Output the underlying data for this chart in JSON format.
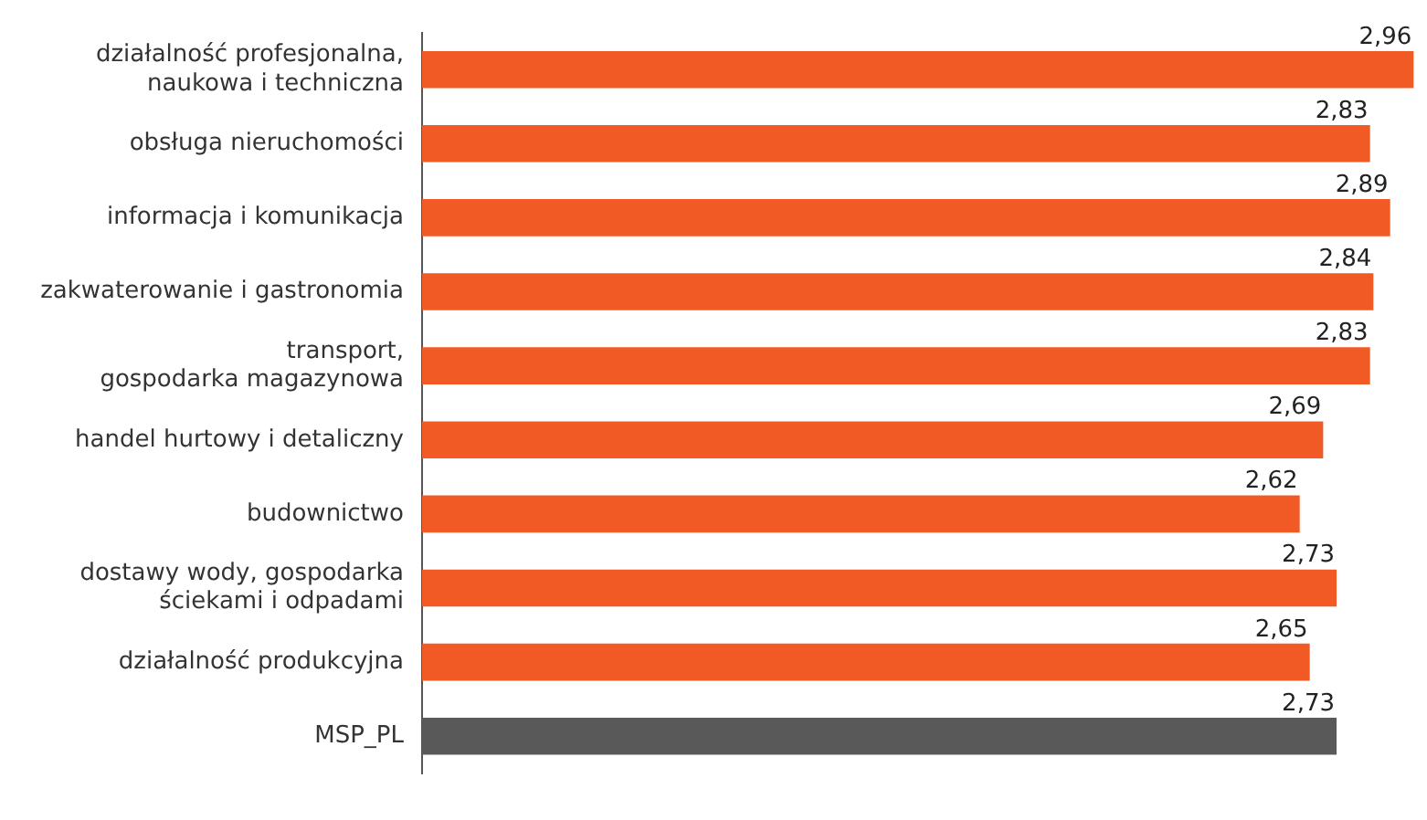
{
  "chart_data": {
    "type": "bar",
    "orientation": "horizontal",
    "categories": [
      "działalność profesjonalna,\nnaukowa i techniczna",
      "obsługa nieruchomości",
      "informacja i komunikacja",
      "zakwaterowanie i gastronomia",
      "transport,\ngospodarka magazynowa",
      "handel hurtowy i detaliczny",
      "budownictwo",
      "dostawy wody, gospodarka\nściekami i odpadami",
      "działalność produkcyjna",
      "MSP_PL"
    ],
    "values": [
      2.96,
      2.83,
      2.89,
      2.84,
      2.83,
      2.69,
      2.62,
      2.73,
      2.65,
      2.73
    ],
    "colors": [
      "#f15a24",
      "#f15a24",
      "#f15a24",
      "#f15a24",
      "#f15a24",
      "#f15a24",
      "#f15a24",
      "#f15a24",
      "#f15a24",
      "#595959"
    ],
    "value_labels": [
      "2,96",
      "2,83",
      "2,89",
      "2,84",
      "2,83",
      "2,69",
      "2,62",
      "2,73",
      "2,65",
      "2,73"
    ]
  }
}
